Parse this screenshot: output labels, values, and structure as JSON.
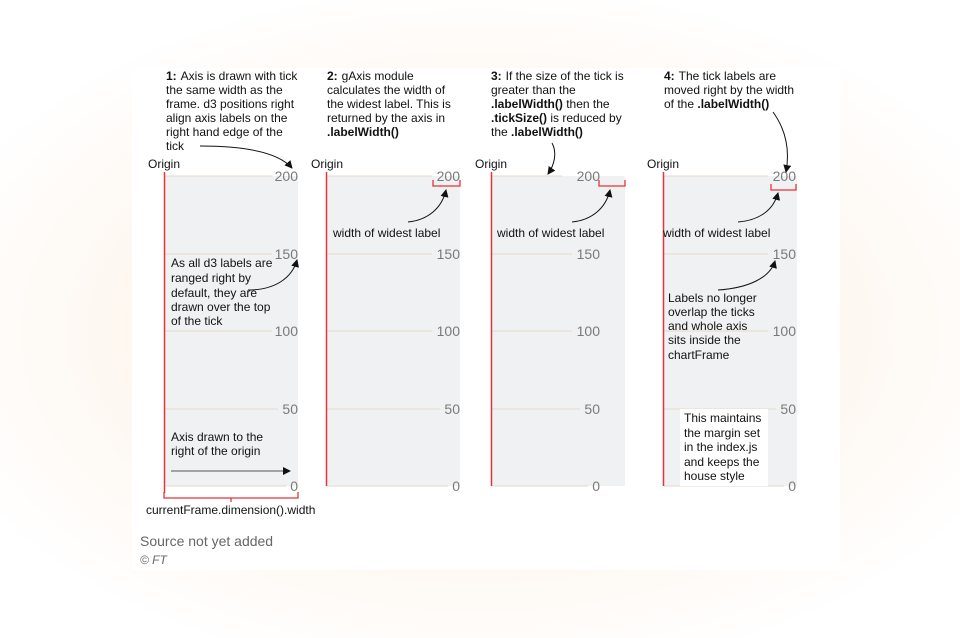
{
  "axis_values": [
    "200",
    "150",
    "100",
    "50",
    "0"
  ],
  "origin_label": "Origin",
  "widest_label_text": "width of widest label",
  "panels": [
    {
      "number": "1:",
      "desc": [
        "Axis is drawn with tick",
        "the same width as the",
        "frame. d3 positions right",
        "align axis labels on the",
        "right hand edge of the",
        "tick"
      ],
      "note_labels": [
        "As all d3 labels are",
        "ranged right by",
        "default, they are",
        "drawn over the top",
        "of the tick"
      ],
      "note_axis": [
        "Axis drawn to the",
        "right of the origin"
      ],
      "width_label": "currentFrame.dimension().width"
    },
    {
      "number": "2:",
      "desc_plain": [
        "gAxis module",
        "calculates the width of",
        "the widest label. This is",
        "returned by the axis in"
      ],
      "desc_bold": ".labelWidth()"
    },
    {
      "number": "3:",
      "line1": "If the size of the tick is",
      "line2": "greater than the",
      "line3_bold": ".labelWidth()",
      "line3_plain": " then the",
      "line4_bold": ".tickSize()",
      "line4_plain": " is reduced by",
      "line5_plain": "the ",
      "line5_bold": ".labelWidth()"
    },
    {
      "number": "4:",
      "line1": "The tick labels are",
      "line2": "moved right by the width",
      "line3_plain": "of the ",
      "line3_bold": ".labelWidth()",
      "note_overlap": [
        "Labels no longer",
        "overlap the ticks",
        "and whole axis",
        "sits inside the",
        "chartFrame"
      ],
      "note_margin": [
        "This maintains",
        "the margin set",
        "in the index.js",
        "and keeps the",
        "house style"
      ]
    }
  ],
  "footer": {
    "source": "Source not yet added",
    "copyright": "© FT"
  }
}
